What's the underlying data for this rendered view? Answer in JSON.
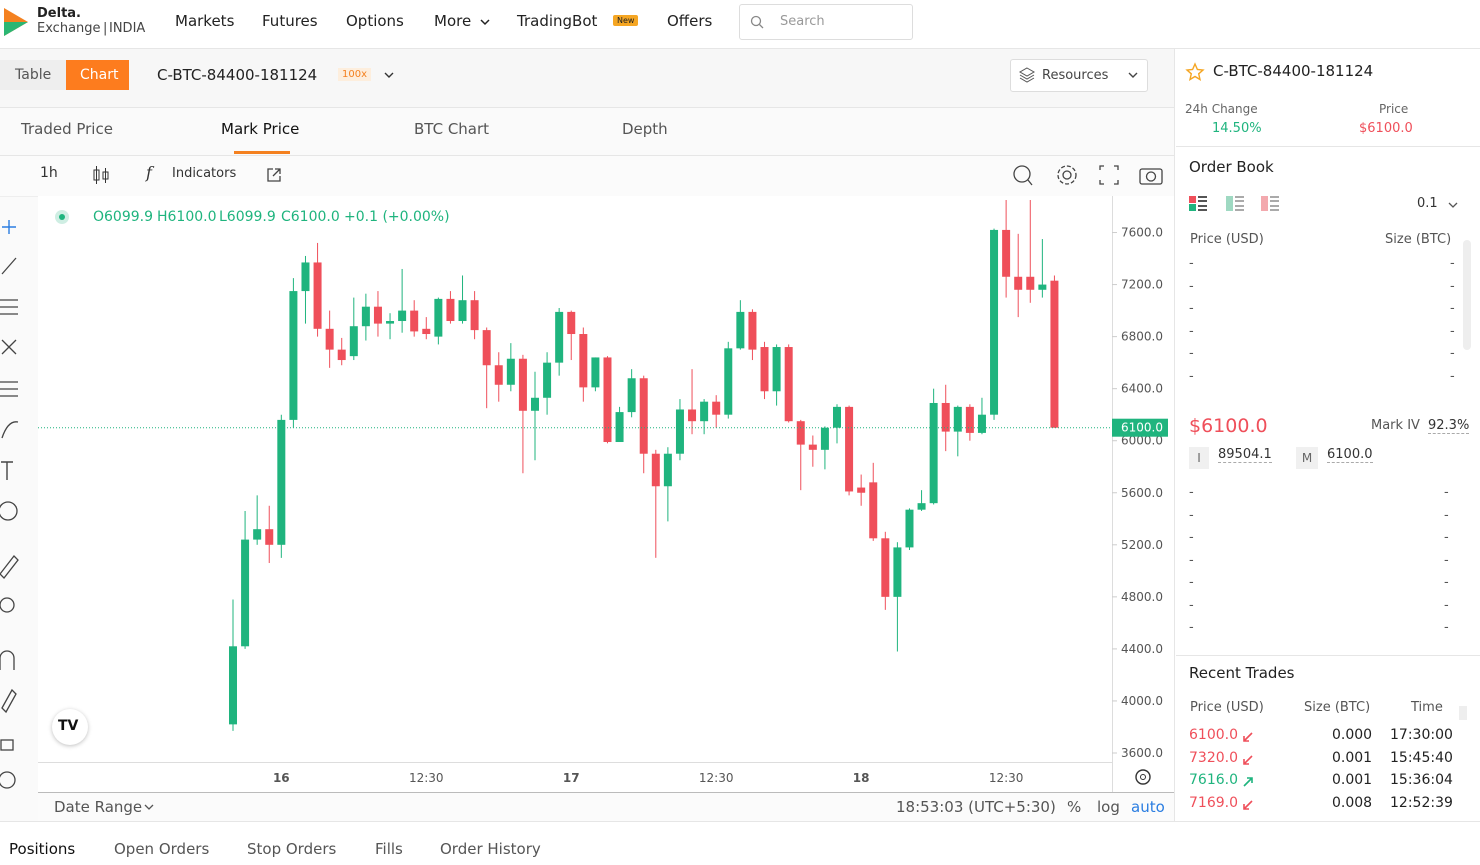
{
  "nav": {
    "brand": "Delta.",
    "brand_sub": "Exchange",
    "brand_region": "INDIA",
    "items": [
      "Markets",
      "Futures",
      "Options",
      "More",
      "TradingBot",
      "Offers"
    ],
    "badge": "New",
    "search_placeholder": "Search"
  },
  "view_toggle": [
    "Table",
    "Chart"
  ],
  "contract": {
    "symbol": "C-BTC-84400-181124",
    "leverage": "100x"
  },
  "resources": "Resources",
  "chart_tabs": [
    "Traded Price",
    "Mark Price",
    "BTC Chart",
    "Depth"
  ],
  "toolbar": {
    "interval": "1h",
    "indicators": "Indicators"
  },
  "ohlc_legend": [
    "O6099.9",
    "H6100.0",
    "L6099.9",
    "C6100.0",
    "+0.1 (+0.00%)"
  ],
  "chart_data": {
    "type": "candlestick",
    "categories": [
      null,
      null,
      null,
      null,
      "16",
      null,
      null,
      null,
      null,
      null,
      null,
      null,
      null,
      null,
      null,
      null,
      "12:30",
      null,
      null,
      null,
      null,
      null,
      null,
      null,
      null,
      null,
      null,
      null,
      "17",
      null,
      null,
      null,
      null,
      null,
      null,
      null,
      null,
      null,
      null,
      null,
      "12:30",
      null,
      null,
      null,
      null,
      null,
      null,
      null,
      null,
      null,
      null,
      null,
      "18",
      null,
      null,
      null,
      null,
      null,
      null,
      null,
      null,
      null,
      null,
      null,
      "12:30",
      null,
      null,
      null,
      null
    ],
    "open": [
      3820,
      4420,
      5240,
      5320,
      5200,
      6160,
      7150,
      7370,
      6860,
      6700,
      6650,
      6880,
      7030,
      6900,
      6920,
      7000,
      6860,
      6800,
      7090,
      6920,
      7080,
      6850,
      6580,
      6430,
      6630,
      6230,
      6330,
      6600,
      6990,
      6820,
      6410,
      6640,
      5990,
      6220,
      6480,
      5900,
      5650,
      5900,
      6240,
      6150,
      6300,
      6200,
      6710,
      6990,
      6720,
      6380,
      6720,
      6150,
      5970,
      5930,
      6100,
      6260,
      5640,
      5680,
      5250,
      4800,
      5180,
      5470,
      5520,
      6290,
      6070,
      6260,
      6060,
      6200,
      7620,
      7260,
      7260,
      7160,
      7230
    ],
    "high": [
      4780,
      5460,
      5580,
      5500,
      6200,
      7250,
      7420,
      7520,
      7000,
      6790,
      7100,
      7130,
      7150,
      6980,
      7320,
      7080,
      6950,
      7100,
      7150,
      7270,
      7150,
      6870,
      6680,
      6750,
      6660,
      6530,
      6680,
      7020,
      7000,
      6870,
      6640,
      6650,
      6260,
      6550,
      6500,
      5930,
      5950,
      6320,
      6550,
      6320,
      6350,
      6760,
      7080,
      7010,
      6760,
      6740,
      6740,
      6160,
      6040,
      6110,
      6280,
      6270,
      5740,
      5830,
      5300,
      5220,
      5480,
      5620,
      6400,
      6430,
      6270,
      6280,
      6330,
      7630,
      7850,
      7590,
      7850,
      7550,
      7270
    ],
    "low": [
      3770,
      4400,
      5200,
      5060,
      5100,
      6100,
      6900,
      6800,
      6560,
      6580,
      6620,
      6770,
      6800,
      6780,
      6830,
      6800,
      6780,
      6740,
      6900,
      6900,
      6780,
      6250,
      6300,
      6380,
      5750,
      5850,
      6200,
      6500,
      6620,
      6300,
      6380,
      5980,
      5990,
      6180,
      5750,
      5100,
      5380,
      5850,
      6050,
      6050,
      6100,
      6170,
      6700,
      6620,
      6320,
      6270,
      6140,
      5620,
      5800,
      5780,
      5980,
      5580,
      5500,
      5230,
      4700,
      4380,
      5160,
      5460,
      5510,
      5920,
      5880,
      6000,
      6050,
      6160,
      7100,
      6950,
      7060,
      7100,
      6100
    ],
    "close": [
      4420,
      5240,
      5320,
      5200,
      6160,
      7150,
      7370,
      6860,
      6700,
      6620,
      6880,
      7030,
      6900,
      6920,
      7000,
      6840,
      6820,
      7090,
      6920,
      7080,
      6850,
      6580,
      6430,
      6630,
      6230,
      6330,
      6600,
      6990,
      6820,
      6410,
      6640,
      5990,
      6220,
      6480,
      5900,
      5650,
      5900,
      6240,
      6150,
      6300,
      6200,
      6710,
      6990,
      6700,
      6380,
      6720,
      6150,
      5970,
      5930,
      6100,
      6260,
      5610,
      5600,
      5250,
      4800,
      5180,
      5470,
      5520,
      6290,
      6070,
      6260,
      6060,
      6200,
      7620,
      7260,
      7160,
      7160,
      7200,
      6100
    ],
    "up_color": "#1fb47e",
    "down_color": "#ef4f5a",
    "ylim": [
      3500,
      7850
    ],
    "yticks": [
      {
        "value": 3600,
        "label": "3600.0"
      },
      {
        "value": 4000,
        "label": "4000.0"
      },
      {
        "value": 4400,
        "label": "4400.0"
      },
      {
        "value": 4800,
        "label": "4800.0"
      },
      {
        "value": 5200,
        "label": "5200.0"
      },
      {
        "value": 5600,
        "label": "5600.0"
      },
      {
        "value": 6000,
        "label": "6000.0"
      },
      {
        "value": 6400,
        "label": "6400.0"
      },
      {
        "value": 6800,
        "label": "6800.0"
      },
      {
        "value": 7200,
        "label": "7200.0"
      },
      {
        "value": 7600,
        "label": "7600.0"
      }
    ],
    "last_price": {
      "value": 6100,
      "label": "6100.0"
    },
    "grid": false
  },
  "chart_footer": {
    "date_range": "Date Range",
    "clock": "18:53:03 (UTC+5:30)",
    "scale_options": [
      "%",
      "log",
      "auto"
    ]
  },
  "bottom_tabs": [
    "Positions",
    "Open Orders",
    "Stop Orders",
    "Fills",
    "Order History"
  ],
  "ticker": {
    "symbol": "C-BTC-84400-181124",
    "change_label": "24h Change",
    "change": "14.50%",
    "price_label": "Price",
    "price": "$6100.0"
  },
  "order_book": {
    "title": "Order Book",
    "precision": "0.1",
    "columns": [
      "Price (USD)",
      "Size (BTC)"
    ],
    "asks": [
      [
        "-",
        "-"
      ],
      [
        "-",
        "-"
      ],
      [
        "-",
        "-"
      ],
      [
        "-",
        "-"
      ],
      [
        "-",
        "-"
      ],
      [
        "-",
        "-"
      ]
    ],
    "mark_price": "$6100.0",
    "mark_iv_label": "Mark IV",
    "mark_iv": "92.3%",
    "index_label": "I",
    "index": "89504.1",
    "mark_label": "M",
    "mark": "6100.0",
    "bids": [
      [
        "-",
        "-"
      ],
      [
        "-",
        "-"
      ],
      [
        "-",
        "-"
      ],
      [
        "-",
        "-"
      ],
      [
        "-",
        "-"
      ],
      [
        "-",
        "-"
      ],
      [
        "-",
        "-"
      ]
    ]
  },
  "recent_trades": {
    "title": "Recent Trades",
    "columns": [
      "Price (USD)",
      "Size (BTC)",
      "Time"
    ],
    "rows": [
      [
        "6100.0",
        "0.000",
        "17:30:00"
      ],
      [
        "7320.0",
        "0.001",
        "15:45:40"
      ],
      [
        "7616.0",
        "0.001",
        "15:36:04"
      ],
      [
        "7169.0",
        "0.008",
        "12:52:39"
      ]
    ],
    "row_colors": [
      "#ef4f5a",
      "#ef4f5a",
      "#1fb47e",
      "#ef4f5a"
    ],
    "row_arrows": [
      "down",
      "down",
      "up",
      "down"
    ]
  }
}
